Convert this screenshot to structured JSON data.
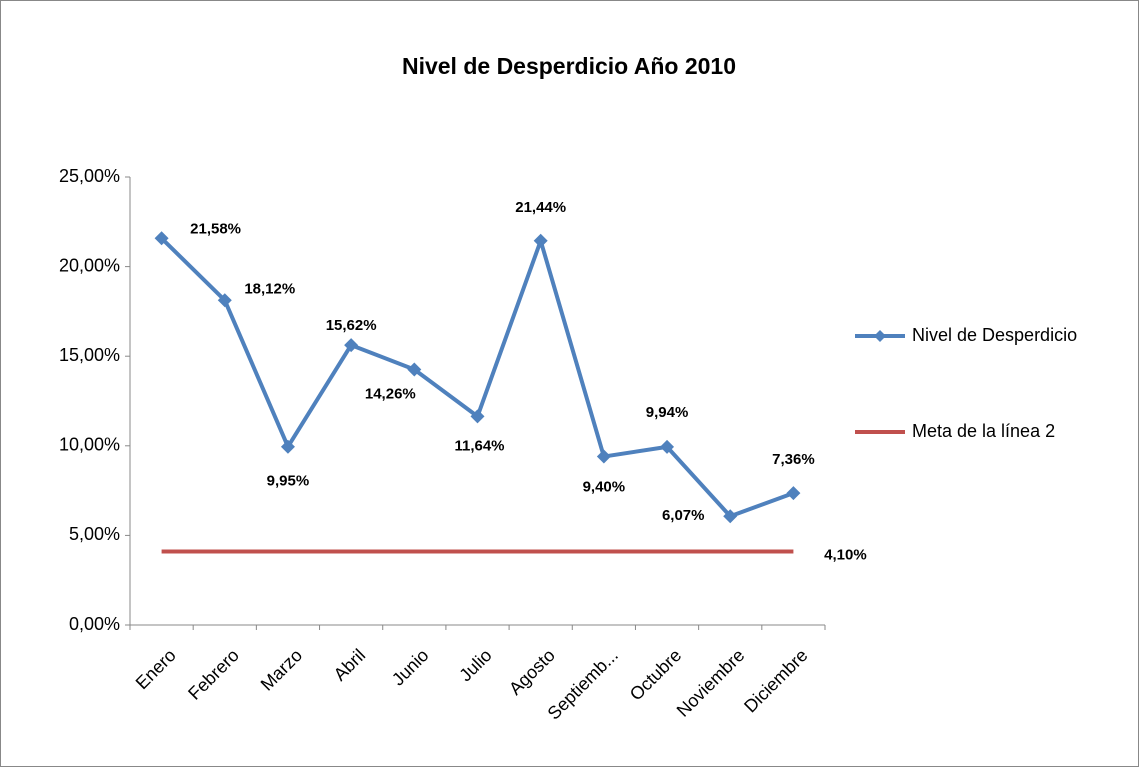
{
  "chart_data": {
    "type": "line",
    "title": "Nivel de Desperdicio Año 2010",
    "categories": [
      "Enero",
      "Febrero",
      "Marzo",
      "Abril",
      "Junio",
      "Julio",
      "Agosto",
      "Septiemb...",
      "Octubre",
      "Noviembre",
      "Diciembre"
    ],
    "series": [
      {
        "name": "Nivel de Desperdicio",
        "color": "#4f81bd",
        "values": [
          21.58,
          18.12,
          9.95,
          15.62,
          14.26,
          11.64,
          21.44,
          9.4,
          9.94,
          6.07,
          7.36
        ],
        "value_labels": [
          "21,58%",
          "18,12%",
          "9,95%",
          "15,62%",
          "14,26%",
          "11,64%",
          "21,44%",
          "9,40%",
          "9,94%",
          "6,07%",
          "7,36%"
        ]
      },
      {
        "name": "Meta de la línea 2",
        "color": "#c0504d",
        "values": [
          4.1,
          4.1,
          4.1,
          4.1,
          4.1,
          4.1,
          4.1,
          4.1,
          4.1,
          4.1,
          4.1
        ],
        "value_labels": [
          null,
          null,
          null,
          null,
          null,
          null,
          null,
          null,
          null,
          null,
          "4,10%"
        ]
      }
    ],
    "ylim": [
      0,
      25
    ],
    "yticks": [
      {
        "value": 0,
        "label": "0,00%"
      },
      {
        "value": 5,
        "label": "5,00%"
      },
      {
        "value": 10,
        "label": "10,00%"
      },
      {
        "value": 15,
        "label": "15,00%"
      },
      {
        "value": 20,
        "label": "20,00%"
      },
      {
        "value": 25,
        "label": "25,00%"
      }
    ],
    "legend": "right"
  }
}
